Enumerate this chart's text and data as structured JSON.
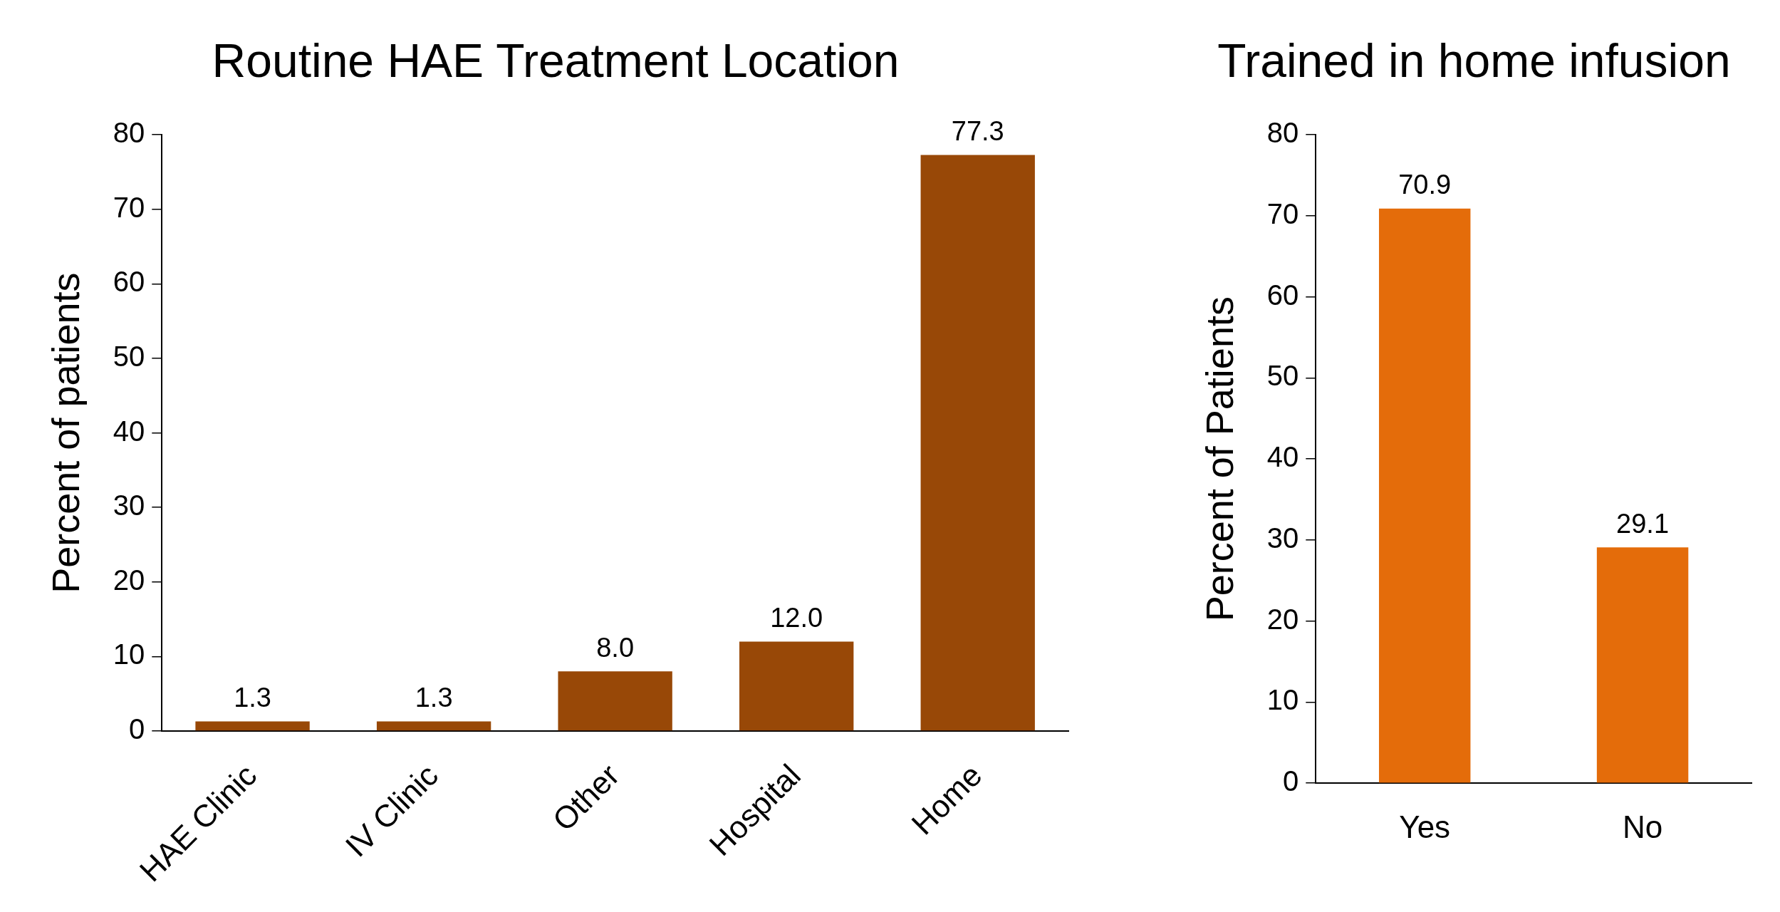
{
  "chart_data": [
    {
      "type": "bar",
      "title": "Routine HAE Treatment Location",
      "ylabel": "Percent of patients",
      "categories": [
        "HAE Clinic",
        "IV Clinic",
        "Other",
        "Hospital",
        "Home"
      ],
      "values": [
        1.3,
        1.3,
        8.0,
        12.0,
        77.3
      ],
      "value_labels": [
        "1.3",
        "1.3",
        "8.0",
        "12.0",
        "77.3"
      ],
      "color": "#984807",
      "ylim": [
        0,
        80
      ],
      "yticks": [
        0,
        10,
        20,
        30,
        40,
        50,
        60,
        70,
        80
      ]
    },
    {
      "type": "bar",
      "title": "Trained in home infusion",
      "ylabel": "Percent of Patients",
      "categories": [
        "Yes",
        "No"
      ],
      "values": [
        70.9,
        29.1
      ],
      "value_labels": [
        "70.9",
        "29.1"
      ],
      "color": "#e46c0a",
      "ylim": [
        0,
        80
      ],
      "yticks": [
        0,
        10,
        20,
        30,
        40,
        50,
        60,
        70,
        80
      ]
    }
  ]
}
